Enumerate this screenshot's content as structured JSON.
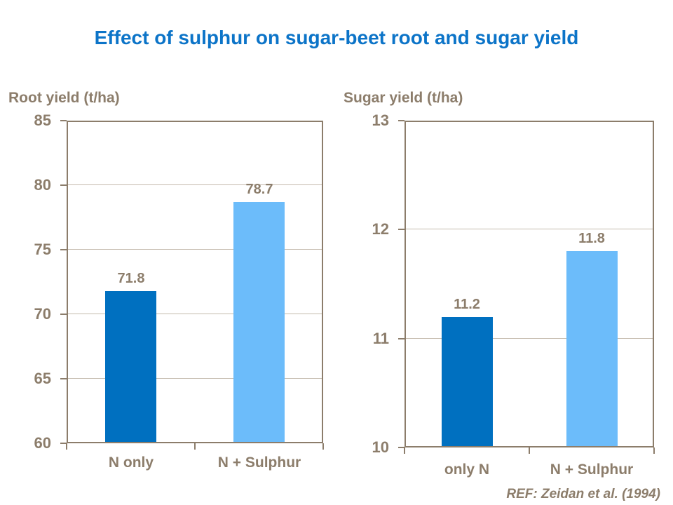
{
  "title": "Effect of sulphur on sugar-beet root and sugar yield",
  "footer": {
    "ref_label": "REF: Zeidan et al. (1994)"
  },
  "colors": {
    "title_blue": "#0C74C8",
    "dark_bar": "#0070C0",
    "light_bar": "#6CBCFA",
    "axis_brown": "#8C7D6B",
    "text_brown": "#8C7D6B",
    "gridline": "#C4BAAD"
  },
  "chart_data": [
    {
      "type": "bar",
      "title": "Root yield (t/ha)",
      "ylabel": "Root yield (t/ha)",
      "xlabel": "",
      "categories": [
        "N only",
        "N + Sulphur"
      ],
      "values": [
        71.8,
        78.7
      ],
      "labels": [
        "71.8",
        "78.7"
      ],
      "bar_colors": [
        "dark_bar",
        "light_bar"
      ],
      "ylim": [
        60,
        85
      ],
      "yticks": [
        85,
        80,
        75,
        70,
        65,
        60
      ],
      "grid": true,
      "legend": "none"
    },
    {
      "type": "bar",
      "title": "Sugar yield (t/ha)",
      "ylabel": "Sugar yield (t/ha)",
      "xlabel": "",
      "categories": [
        "only N",
        "N + Sulphur"
      ],
      "values": [
        11.2,
        11.8
      ],
      "labels": [
        "11.2",
        "11.8"
      ],
      "bar_colors": [
        "dark_bar",
        "light_bar"
      ],
      "ylim": [
        10,
        13
      ],
      "yticks": [
        13,
        12,
        11,
        10
      ],
      "grid": true,
      "legend": "none"
    }
  ]
}
